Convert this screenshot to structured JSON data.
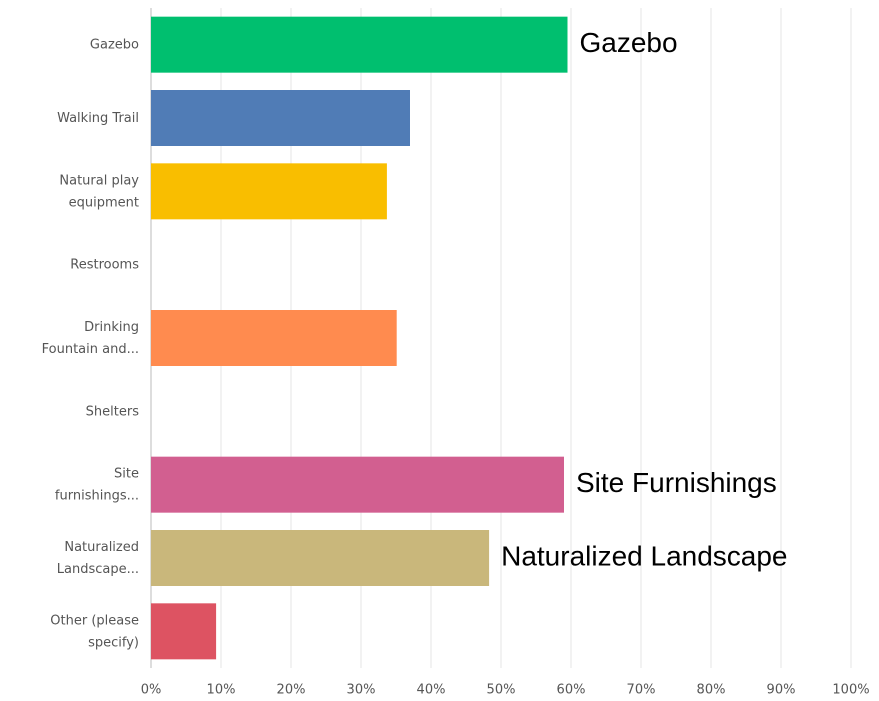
{
  "chart_data": {
    "type": "bar",
    "orientation": "horizontal",
    "categories": [
      "Gazebo",
      "Walking Trail",
      "Natural play\nequipment",
      "Restrooms",
      "Drinking\nFountain and...",
      "Shelters",
      "Site\nfurnishings...",
      "Naturalized\nLandscape...",
      "Other (please\nspecify)"
    ],
    "values": [
      59.5,
      37,
      33.7,
      0,
      35.1,
      0,
      59,
      48.3,
      9.3
    ],
    "colors": [
      "#00bf6f",
      "#507cb6",
      "#f9be00",
      null,
      "#ff8b4f",
      null,
      "#d25f90",
      "#c9b77b",
      "#dd5362"
    ],
    "xlim": [
      0,
      100
    ],
    "xticks": [
      {
        "value": 0,
        "label": "0%"
      },
      {
        "value": 10,
        "label": "10%"
      },
      {
        "value": 20,
        "label": "20%"
      },
      {
        "value": 30,
        "label": "30%"
      },
      {
        "value": 40,
        "label": "40%"
      },
      {
        "value": 50,
        "label": "50%"
      },
      {
        "value": 60,
        "label": "60%"
      },
      {
        "value": 70,
        "label": "70%"
      },
      {
        "value": 80,
        "label": "80%"
      },
      {
        "value": 90,
        "label": "90%"
      },
      {
        "value": 100,
        "label": "100%"
      }
    ],
    "grid": true,
    "annotations": [
      "Gazebo",
      "Site Furnishings",
      "Naturalized Landscape"
    ]
  }
}
